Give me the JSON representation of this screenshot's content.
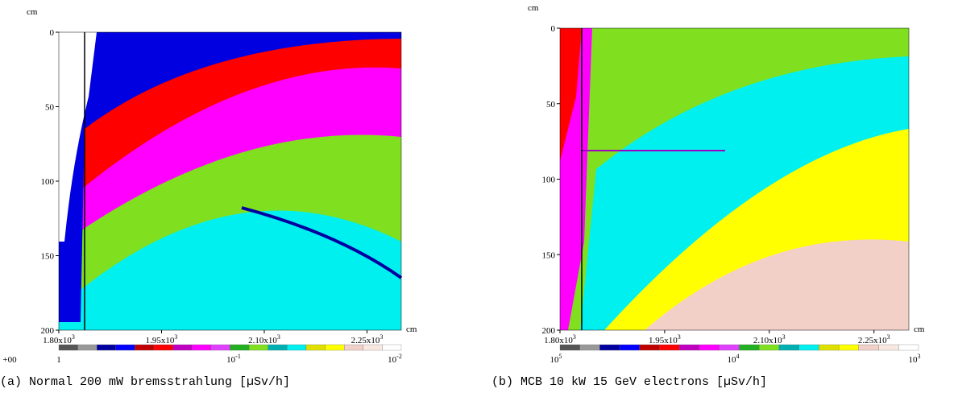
{
  "panels": [
    {
      "y_unit": "cm",
      "x_unit": "cm",
      "yticks": [
        "0",
        "50",
        "100",
        "150",
        "200"
      ],
      "xticks": [
        {
          "base": "1.80x10",
          "exp": "3"
        },
        {
          "base": "1.95x10",
          "exp": "3"
        },
        {
          "base": "2.10x10",
          "exp": "3"
        },
        {
          "base": "2.25x10",
          "exp": "3"
        }
      ],
      "colorbar_labels": [
        {
          "base": "+00"
        },
        {
          "base": "1"
        },
        {
          "base": "10",
          "exp": "-1"
        },
        {
          "base": "10",
          "exp": "-2"
        }
      ],
      "caption": "(a) Normal 200 mW bremsstrahlung [µSv/h]"
    },
    {
      "y_unit": "cm",
      "x_unit": "cm",
      "yticks": [
        "0",
        "50",
        "100",
        "150",
        "200"
      ],
      "xticks": [
        {
          "base": "1.80x10",
          "exp": "3"
        },
        {
          "base": "1.95x10",
          "exp": "3"
        },
        {
          "base": "2.10x10",
          "exp": "3"
        },
        {
          "base": "2.25x10",
          "exp": "3"
        }
      ],
      "colorbar_labels": [
        {
          "base": "10",
          "exp": "5"
        },
        {
          "base": "10",
          "exp": "4"
        },
        {
          "base": "10",
          "exp": "3"
        }
      ],
      "caption": "(b) MCB 10 kW 15 GeV electrons [µSv/h]"
    }
  ]
}
